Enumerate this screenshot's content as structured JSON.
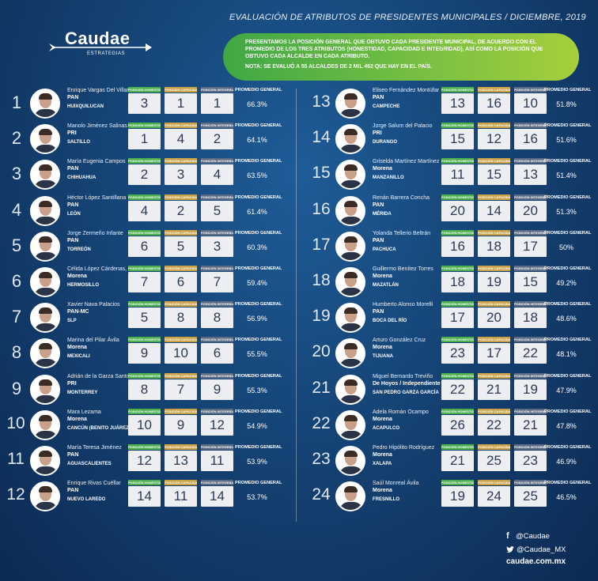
{
  "header": {
    "title": "EVALUACIÓN DE ATRIBUTOS DE PRESIDENTES MUNICIPALES / DICIEMBRE, 2019"
  },
  "logo": {
    "word": "Caudae",
    "sub": "ESTRATEGIAS"
  },
  "banner": {
    "text": "PRESENTAMOS LA POSICIÓN GENERAL QUE OBTUVO CADA PRESIDENTE MUNICIPAL, DE ACUERDO CON EL PROMEDIO DE LOS TRES ATRIBUTOS (HONESTIDAD, CAPACIDAD E INTEGRIDAD), ASÍ COMO LA POSICIÓN QUE OBTUVO CADA ALCALDE EN CADA ATRIBUTO.",
    "note": "NOTA: SE EVALUÓ A 55 ALCALDES DE 2 MIL 462 QUE HAY EN EL PAÍS."
  },
  "labels": {
    "honestidad": "POSICIÓN HONESTIDAD",
    "capacidad": "POSICIÓN CAPACIDAD",
    "integridad": "POSICIÓN INTEGRIDAD",
    "promedio": "PROMEDIO GENERAL"
  },
  "mayors": [
    {
      "rank": "1",
      "name": "Enrique Vargas Del Villar",
      "party": "PAN",
      "city": "HUIXQUILUCAN",
      "h": "3",
      "c": "1",
      "i": "1",
      "avg": "66.3%"
    },
    {
      "rank": "2",
      "name": "Manolo Jiménez Salinas",
      "party": "PRI",
      "city": "SALTILLO",
      "h": "1",
      "c": "4",
      "i": "2",
      "avg": "64.1%"
    },
    {
      "rank": "3",
      "name": "María Eugenia Campos",
      "party": "PAN",
      "city": "CHIHUAHUA",
      "h": "2",
      "c": "3",
      "i": "4",
      "avg": "63.5%"
    },
    {
      "rank": "4",
      "name": "Héctor López Santillana",
      "party": "PAN",
      "city": "LEÓN",
      "h": "4",
      "c": "2",
      "i": "5",
      "avg": "61.4%"
    },
    {
      "rank": "5",
      "name": "Jorge Zermeño Infante",
      "party": "PAN",
      "city": "TORREÓN",
      "h": "6",
      "c": "5",
      "i": "3",
      "avg": "60.3%"
    },
    {
      "rank": "6",
      "name": "Célida López Cárdenas,",
      "party": "Morena",
      "city": "HERMOSILLO",
      "h": "7",
      "c": "6",
      "i": "7",
      "avg": "59.4%"
    },
    {
      "rank": "7",
      "name": "Xavier Nava Palacios",
      "party": "PAN-MC",
      "city": "SLP",
      "h": "5",
      "c": "8",
      "i": "8",
      "avg": "56.9%"
    },
    {
      "rank": "8",
      "name": "Marina del Pilar Ávila",
      "party": "Morena",
      "city": "MEXICALI",
      "h": "9",
      "c": "10",
      "i": "6",
      "avg": "55.5%"
    },
    {
      "rank": "9",
      "name": "Adrián de la Garza Santos",
      "party": "PRI",
      "city": "MONTERREY",
      "h": "8",
      "c": "7",
      "i": "9",
      "avg": "55.3%"
    },
    {
      "rank": "10",
      "name": "Mara Lezama",
      "party": "Morena",
      "city": "CANCÚN (BENITO JUÁREZ)",
      "h": "10",
      "c": "9",
      "i": "12",
      "avg": "54.9%"
    },
    {
      "rank": "11",
      "name": "María Teresa Jiménez",
      "party": "PAN",
      "city": "AGUASCALIENTES",
      "h": "12",
      "c": "13",
      "i": "11",
      "avg": "53.9%"
    },
    {
      "rank": "12",
      "name": "Enrique Rivas Cuéllar",
      "party": "PAN",
      "city": "NUEVO LAREDO",
      "h": "14",
      "c": "11",
      "i": "14",
      "avg": "53.7%"
    },
    {
      "rank": "13",
      "name": "Eliseo Fernández Montúfar",
      "party": "PAN",
      "city": "CAMPECHE",
      "h": "13",
      "c": "16",
      "i": "10",
      "avg": "51.8%"
    },
    {
      "rank": "14",
      "name": "Jorge Salum del Palacio",
      "party": "PRI",
      "city": "DURANGO",
      "h": "15",
      "c": "12",
      "i": "16",
      "avg": "51.6%"
    },
    {
      "rank": "15",
      "name": "Griselda Martínez Martínez",
      "party": "Morena",
      "city": "MANZANILLO",
      "h": "11",
      "c": "15",
      "i": "13",
      "avg": "51.4%"
    },
    {
      "rank": "16",
      "name": "Renán Barrera Concha",
      "party": "PAN",
      "city": "MÉRIDA",
      "h": "20",
      "c": "14",
      "i": "20",
      "avg": "51.3%"
    },
    {
      "rank": "17",
      "name": "Yolanda Tellerio Beltrán",
      "party": "PAN",
      "city": "PACHUCA",
      "h": "16",
      "c": "18",
      "i": "17",
      "avg": "50%"
    },
    {
      "rank": "18",
      "name": "Guillermo Benítez Torres",
      "party": "Morena",
      "city": "MAZATLÁN",
      "h": "18",
      "c": "19",
      "i": "15",
      "avg": "49.2%"
    },
    {
      "rank": "19",
      "name": "Humberto Alonso Morelli",
      "party": "PAN",
      "city": "BOCA DEL RÍO",
      "h": "17",
      "c": "20",
      "i": "18",
      "avg": "48.6%"
    },
    {
      "rank": "20",
      "name": "Arturo González Cruz",
      "party": "Morena",
      "city": "TIJUANA",
      "h": "23",
      "c": "17",
      "i": "22",
      "avg": "48.1%"
    },
    {
      "rank": "21",
      "name": "Miguel Bernardo Treviño",
      "party": "De Hoyos / Independiente",
      "city": "SAN PEDRO GARZA GARCÍA",
      "h": "22",
      "c": "21",
      "i": "19",
      "avg": "47.9%"
    },
    {
      "rank": "22",
      "name": "Adela Román Ocampo",
      "party": "Morena",
      "city": "ACAPULCO",
      "h": "26",
      "c": "22",
      "i": "21",
      "avg": "47.8%"
    },
    {
      "rank": "23",
      "name": "Pedro Hipólito Rodríguez",
      "party": "Morena",
      "city": "XALAPA",
      "h": "21",
      "c": "25",
      "i": "23",
      "avg": "46.9%"
    },
    {
      "rank": "24",
      "name": "Saúl Monreal Ávila",
      "party": "Morena",
      "city": "FRESNILLO",
      "h": "19",
      "c": "24",
      "i": "25",
      "avg": "46.5%"
    }
  ],
  "social": {
    "facebook": "@Caudae",
    "twitter": "@Caudae_MX",
    "website": "caudae.com.mx"
  },
  "colors": {
    "honestidad": "#4cae4f",
    "capacidad": "#c9a247",
    "integridad": "#5a6a82",
    "banner": "#5fb546",
    "background": "#154476"
  }
}
